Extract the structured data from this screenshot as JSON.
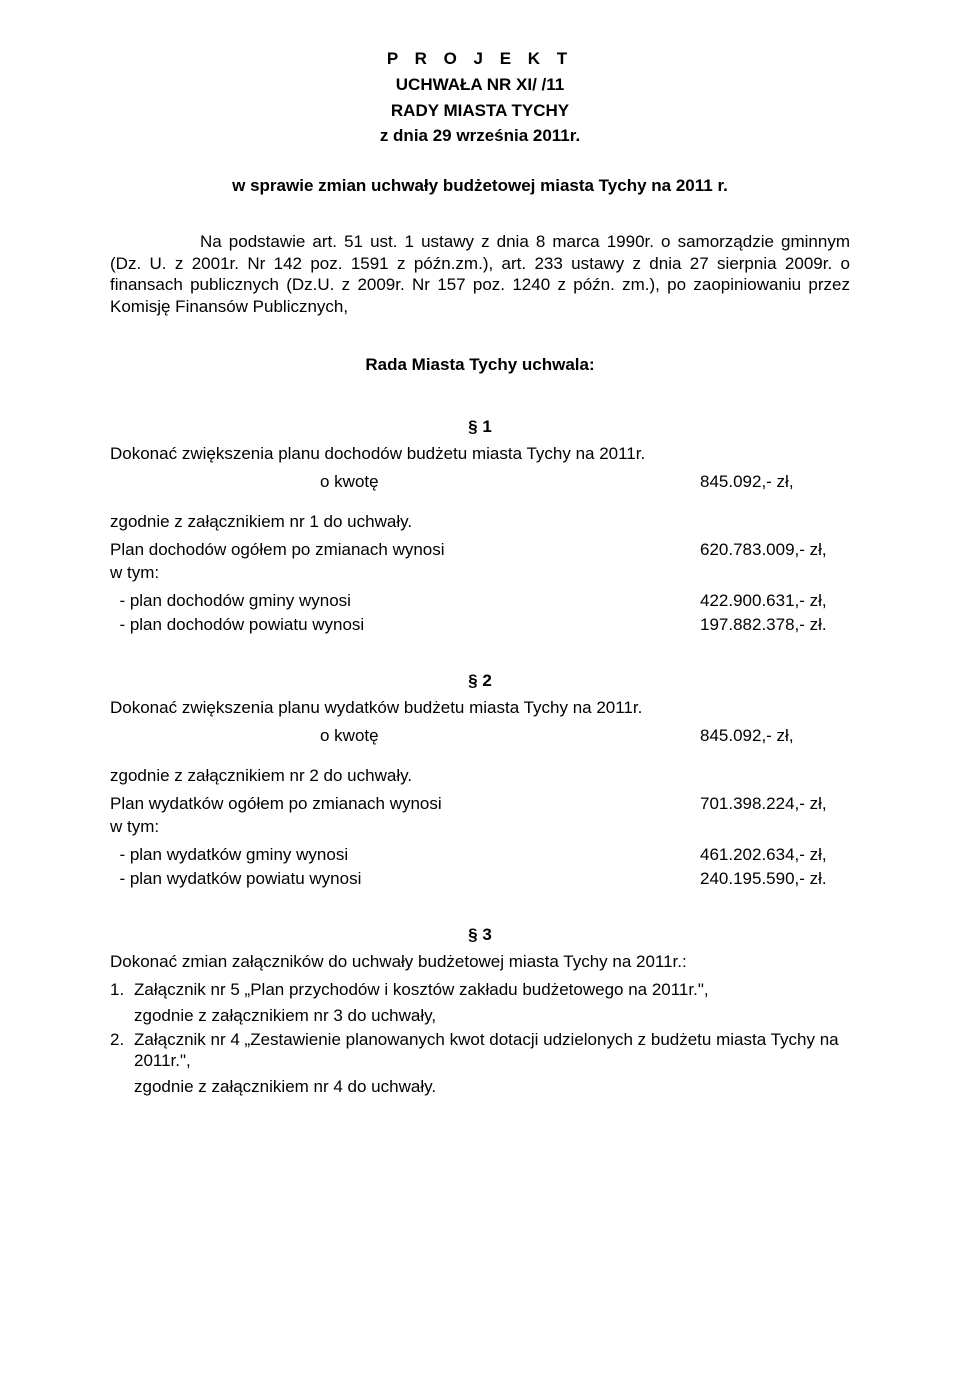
{
  "header": {
    "projekt": "P R O J E K T",
    "uchwala_line": "UCHWAŁA NR  XI/       /11",
    "rady": "RADY MIASTA TYCHY",
    "zdnia": "z dnia 29 września 2011r."
  },
  "subject": "w sprawie zmian uchwały budżetowej miasta Tychy na 2011 r.",
  "basis": "Na podstawie art. 51 ust. 1 ustawy z dnia 8 marca 1990r. o samorządzie gminnym (Dz. U. z 2001r. Nr 142 poz. 1591 z późn.zm.), art. 233 ustawy z dnia 27 sierpnia 2009r. o finansach publicznych (Dz.U. z 2009r. Nr 157 poz. 1240 z późn. zm.), po zaopiniowaniu przez Komisję Finansów Publicznych,",
  "proclaim": "Rada Miasta Tychy uchwala:",
  "s1": {
    "num": "§ 1",
    "lead": "Dokonać zwiększenia planu dochodów budżetu miasta Tychy na 2011r.",
    "okwote": "o kwotę",
    "okwote_val": "845.092,- zł,",
    "zg": "zgodnie z załącznikiem nr 1 do uchwały.",
    "plan_ogolem": "Plan dochodów ogółem po zmianach wynosi",
    "plan_ogolem_val": "620.783.009,- zł,",
    "wtym": "w tym:",
    "gminy": "  - plan dochodów gminy wynosi",
    "gminy_val": "422.900.631,- zł,",
    "powiatu": "  - plan dochodów powiatu wynosi",
    "powiatu_val": "197.882.378,- zł."
  },
  "s2": {
    "num": "§ 2",
    "lead": "Dokonać zwiększenia planu wydatków budżetu miasta Tychy na 2011r.",
    "okwote": "o kwotę",
    "okwote_val": "845.092,- zł,",
    "zg": "zgodnie z załącznikiem nr 2 do uchwały.",
    "plan_ogolem": "Plan wydatków ogółem po zmianach wynosi",
    "plan_ogolem_val": "701.398.224,- zł,",
    "wtym": "w tym:",
    "gminy": "  - plan wydatków gminy wynosi",
    "gminy_val": "461.202.634,- zł,",
    "powiatu": "  - plan wydatków powiatu wynosi",
    "powiatu_val": "240.195.590,- zł."
  },
  "s3": {
    "num": "§ 3",
    "lead": "Dokonać zmian załączników do uchwały budżetowej miasta Tychy na 2011r.:",
    "item1_num": "1.",
    "item1": "Załącznik nr 5 „Plan przychodów i kosztów zakładu budżetowego na 2011r.\",",
    "item1_sub": "zgodnie z załącznikiem nr 3 do uchwały,",
    "item2_num": "2.",
    "item2": "Załącznik nr 4 „Zestawienie planowanych kwot dotacji udzielonych z budżetu miasta Tychy na 2011r.\",",
    "item2_sub": "zgodnie z załącznikiem nr 4 do uchwały."
  }
}
